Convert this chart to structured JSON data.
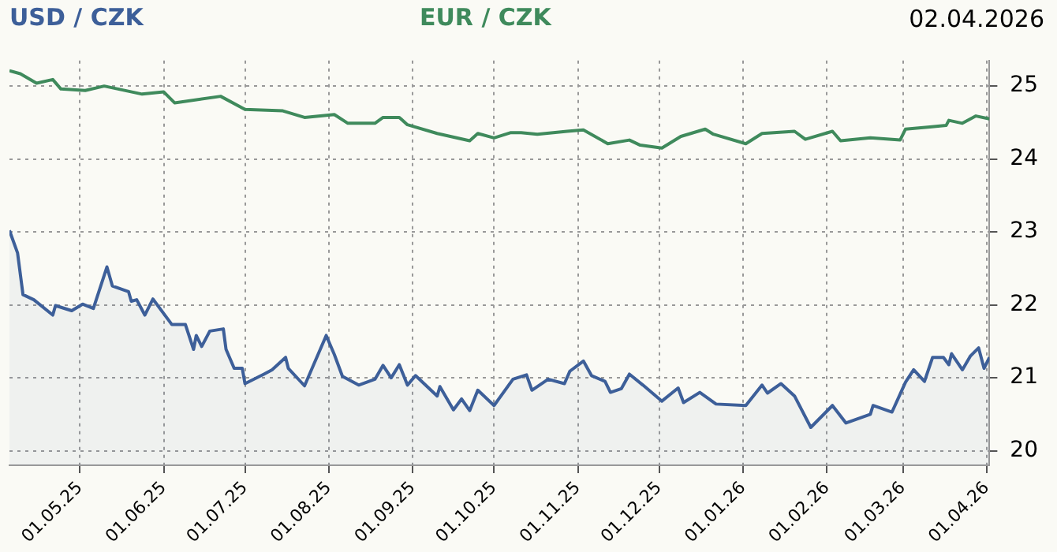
{
  "chart_data": {
    "type": "line",
    "subtitle": "02.04.2026",
    "legend": "top",
    "grid": true,
    "marker": "none",
    "line_style": "solid",
    "xlim": [
      "2025-04-05",
      "2026-04-02"
    ],
    "xticks": [
      {
        "value": "2025-05-01",
        "label": "01.05.25"
      },
      {
        "value": "2025-06-01",
        "label": "01.06.25"
      },
      {
        "value": "2025-07-01",
        "label": "01.07.25"
      },
      {
        "value": "2025-08-01",
        "label": "01.08.25"
      },
      {
        "value": "2025-09-01",
        "label": "01.09.25"
      },
      {
        "value": "2025-10-01",
        "label": "01.10.25"
      },
      {
        "value": "2025-11-01",
        "label": "01.11.25"
      },
      {
        "value": "2025-12-01",
        "label": "01.12.25"
      },
      {
        "value": "2026-01-01",
        "label": "01.01.26"
      },
      {
        "value": "2026-02-01",
        "label": "01.02.26"
      },
      {
        "value": "2026-03-01",
        "label": "01.03.26"
      },
      {
        "value": "2026-04-01",
        "label": "01.04.26"
      }
    ],
    "ylim": [
      19.8,
      25.35
    ],
    "yticks": [
      20,
      21,
      22,
      23,
      24,
      25
    ],
    "series": [
      {
        "name": "USD / CZK",
        "type": "area",
        "color": "#3d5f99",
        "x": [
          "2025-04-05",
          "2025-04-08",
          "2025-04-10",
          "2025-04-14",
          "2025-04-21",
          "2025-04-22",
          "2025-04-28",
          "2025-05-02",
          "2025-05-06",
          "2025-05-11",
          "2025-05-13",
          "2025-05-19",
          "2025-05-20",
          "2025-05-22",
          "2025-05-25",
          "2025-05-28",
          "2025-06-04",
          "2025-06-09",
          "2025-06-12",
          "2025-06-13",
          "2025-06-15",
          "2025-06-18",
          "2025-06-23",
          "2025-06-24",
          "2025-06-27",
          "2025-06-30",
          "2025-07-01",
          "2025-07-08",
          "2025-07-11",
          "2025-07-16",
          "2025-07-17",
          "2025-07-23",
          "2025-07-31",
          "2025-08-03",
          "2025-08-06",
          "2025-08-12",
          "2025-08-18",
          "2025-08-21",
          "2025-08-24",
          "2025-08-27",
          "2025-08-30",
          "2025-09-02",
          "2025-09-10",
          "2025-09-11",
          "2025-09-16",
          "2025-09-19",
          "2025-09-22",
          "2025-09-25",
          "2025-10-01",
          "2025-10-08",
          "2025-10-13",
          "2025-10-15",
          "2025-10-21",
          "2025-10-27",
          "2025-10-29",
          "2025-11-03",
          "2025-11-06",
          "2025-11-11",
          "2025-11-13",
          "2025-11-17",
          "2025-11-20",
          "2025-11-25",
          "2025-12-02",
          "2025-12-08",
          "2025-12-10",
          "2025-12-16",
          "2025-12-22",
          "2026-01-02",
          "2026-01-08",
          "2026-01-10",
          "2026-01-15",
          "2026-01-20",
          "2026-01-26",
          "2026-02-03",
          "2026-02-08",
          "2026-02-17",
          "2026-02-18",
          "2026-02-25",
          "2026-03-02",
          "2026-03-05",
          "2026-03-09",
          "2026-03-12",
          "2026-03-16",
          "2026-03-18",
          "2026-03-19",
          "2026-03-23",
          "2026-03-26",
          "2026-03-29",
          "2026-03-31",
          "2026-04-02"
        ],
        "values": [
          23.02,
          22.71,
          22.14,
          22.07,
          21.86,
          21.99,
          21.92,
          22.01,
          21.95,
          22.52,
          22.26,
          22.18,
          22.05,
          22.07,
          21.86,
          22.08,
          21.73,
          21.73,
          21.39,
          21.58,
          21.43,
          21.64,
          21.67,
          21.39,
          21.13,
          21.13,
          20.92,
          21.05,
          21.11,
          21.28,
          21.13,
          20.89,
          21.58,
          21.32,
          21.02,
          20.9,
          20.98,
          21.17,
          21.0,
          21.18,
          20.9,
          21.03,
          20.75,
          20.88,
          20.56,
          20.71,
          20.55,
          20.83,
          20.62,
          20.98,
          21.04,
          20.83,
          20.98,
          20.92,
          21.09,
          21.23,
          21.03,
          20.95,
          20.8,
          20.85,
          21.05,
          20.9,
          20.68,
          20.86,
          20.66,
          20.8,
          20.64,
          20.62,
          20.9,
          20.79,
          20.92,
          20.75,
          20.32,
          20.62,
          20.38,
          20.5,
          20.62,
          20.53,
          20.94,
          21.11,
          20.95,
          21.28,
          21.28,
          21.18,
          21.33,
          21.11,
          21.3,
          21.41,
          21.13,
          21.28
        ]
      },
      {
        "name": "EUR / CZK",
        "type": "line",
        "color": "#3f8a5c",
        "x": [
          "2025-04-05",
          "2025-04-09",
          "2025-04-15",
          "2025-04-21",
          "2025-04-24",
          "2025-05-03",
          "2025-05-10",
          "2025-05-24",
          "2025-06-01",
          "2025-06-05",
          "2025-06-22",
          "2025-07-01",
          "2025-07-15",
          "2025-07-23",
          "2025-08-03",
          "2025-08-08",
          "2025-08-18",
          "2025-08-21",
          "2025-08-27",
          "2025-08-30",
          "2025-09-10",
          "2025-09-22",
          "2025-09-25",
          "2025-10-01",
          "2025-10-07",
          "2025-10-11",
          "2025-10-17",
          "2025-10-28",
          "2025-11-03",
          "2025-11-12",
          "2025-11-20",
          "2025-11-24",
          "2025-12-02",
          "2025-12-09",
          "2025-12-18",
          "2025-12-21",
          "2026-01-02",
          "2026-01-08",
          "2026-01-20",
          "2026-01-24",
          "2026-02-03",
          "2026-02-06",
          "2026-02-17",
          "2026-02-28",
          "2026-03-02",
          "2026-03-11",
          "2026-03-17",
          "2026-03-18",
          "2026-03-23",
          "2026-03-28",
          "2026-04-02"
        ],
        "values": [
          25.21,
          25.17,
          25.04,
          25.09,
          24.96,
          24.94,
          25.0,
          24.89,
          24.92,
          24.77,
          24.86,
          24.68,
          24.66,
          24.57,
          24.61,
          24.49,
          24.49,
          24.57,
          24.57,
          24.47,
          24.35,
          24.25,
          24.35,
          24.29,
          24.36,
          24.36,
          24.34,
          24.38,
          24.4,
          24.21,
          24.26,
          24.19,
          24.15,
          24.31,
          24.41,
          24.34,
          24.21,
          24.35,
          24.38,
          24.27,
          24.38,
          24.25,
          24.29,
          24.26,
          24.41,
          24.44,
          24.46,
          24.53,
          24.49,
          24.59,
          24.55
        ]
      }
    ]
  }
}
